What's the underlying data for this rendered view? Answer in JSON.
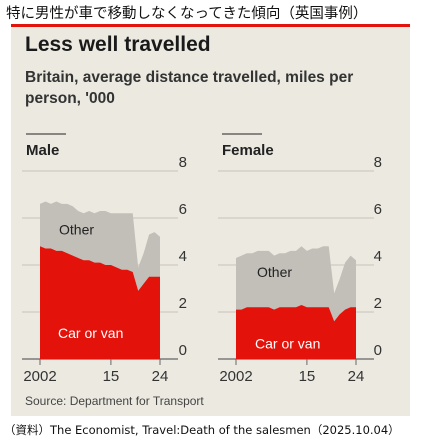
{
  "page": {
    "caption_top": "特に男性が車で移動しなくなってきた傾向（英国事例）",
    "caption_bottom": "（資料）The Economist, Travel:Death of the salesmen（2025.10.04）"
  },
  "colors": {
    "car": "#e3120b",
    "other": "#c2bfb8",
    "background": "#ece9e1",
    "accent": "#e3120b"
  },
  "chart_data": {
    "type": "area",
    "title": "Less well travelled",
    "subtitle": "Britain, average distance travelled, miles per person, '000",
    "source": "Source: Department for Transport",
    "x_ticks": [
      "2002",
      "15",
      "24"
    ],
    "y_ticks": [
      "0",
      "2",
      "4",
      "6",
      "8"
    ],
    "ylim": [
      0,
      8
    ],
    "xlim": [
      2002,
      2024
    ],
    "stacked": true,
    "panels": [
      {
        "name": "Male",
        "x": [
          2002,
          2003,
          2004,
          2005,
          2006,
          2007,
          2008,
          2009,
          2010,
          2011,
          2012,
          2013,
          2014,
          2015,
          2016,
          2017,
          2018,
          2019,
          2020,
          2021,
          2022,
          2023,
          2024
        ],
        "series": [
          {
            "name": "Car or van",
            "values": [
              4.8,
              4.7,
              4.7,
              4.6,
              4.6,
              4.5,
              4.4,
              4.3,
              4.2,
              4.2,
              4.1,
              4.1,
              4.0,
              4.0,
              3.9,
              3.8,
              3.8,
              3.7,
              2.9,
              3.2,
              3.5,
              3.5,
              3.5
            ]
          },
          {
            "name": "Other",
            "values": [
              1.8,
              2.0,
              1.9,
              2.1,
              2.0,
              2.1,
              2.1,
              2.0,
              2.0,
              2.1,
              2.1,
              2.2,
              2.3,
              2.2,
              2.3,
              2.4,
              2.4,
              2.5,
              1.0,
              1.3,
              1.8,
              1.9,
              1.7
            ]
          }
        ]
      },
      {
        "name": "Female",
        "x": [
          2002,
          2003,
          2004,
          2005,
          2006,
          2007,
          2008,
          2009,
          2010,
          2011,
          2012,
          2013,
          2014,
          2015,
          2016,
          2017,
          2018,
          2019,
          2020,
          2021,
          2022,
          2023,
          2024
        ],
        "series": [
          {
            "name": "Car or van",
            "values": [
              2.1,
              2.1,
              2.2,
              2.2,
              2.2,
              2.2,
              2.2,
              2.1,
              2.2,
              2.2,
              2.2,
              2.2,
              2.3,
              2.2,
              2.2,
              2.2,
              2.2,
              2.2,
              1.6,
              1.9,
              2.1,
              2.2,
              2.2
            ]
          },
          {
            "name": "Other",
            "values": [
              2.2,
              2.3,
              2.3,
              2.3,
              2.4,
              2.4,
              2.4,
              2.3,
              2.3,
              2.3,
              2.4,
              2.4,
              2.5,
              2.4,
              2.5,
              2.5,
              2.6,
              2.6,
              1.2,
              1.5,
              2.0,
              2.2,
              2.0
            ]
          }
        ]
      }
    ]
  }
}
